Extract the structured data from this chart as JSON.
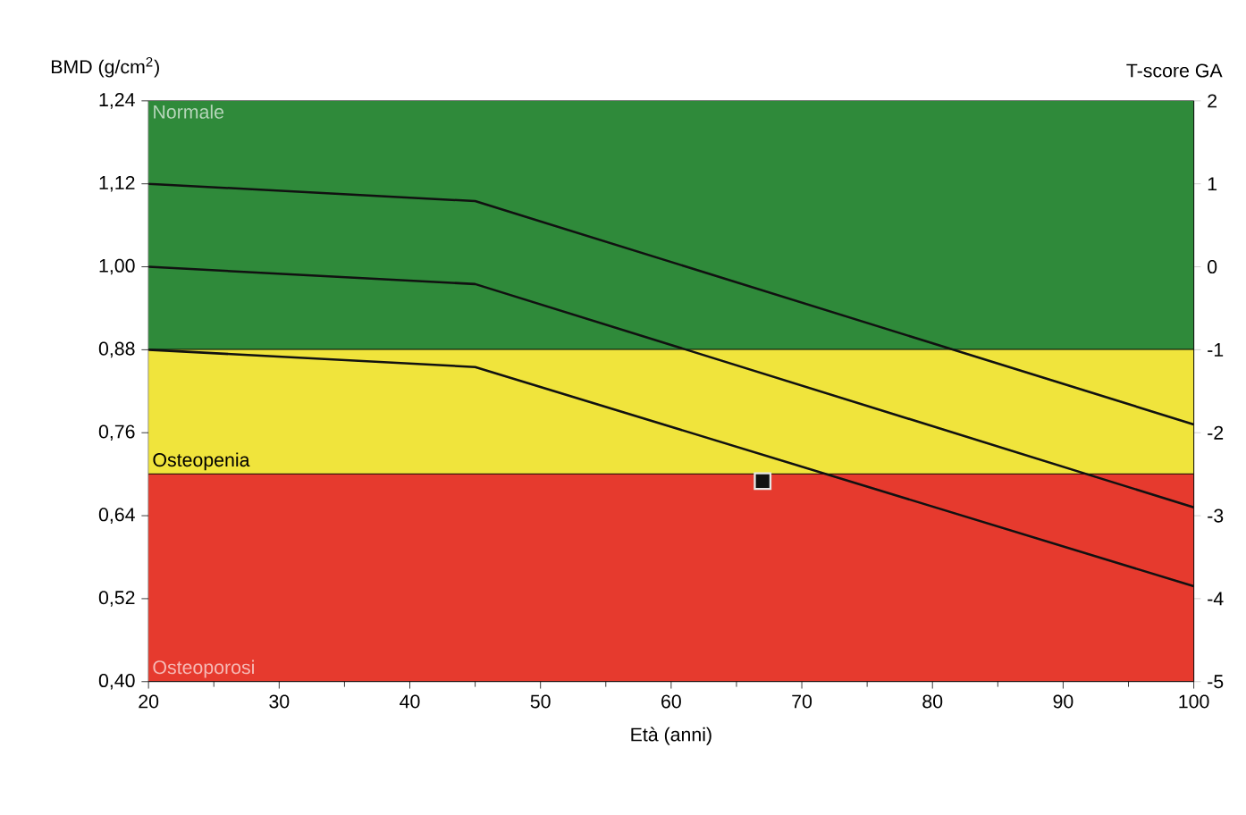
{
  "chart_data": {
    "type": "line",
    "xlabel": "Età (anni)",
    "ylabel": "BMD (g/cm$^{2}$)",
    "y2label": "T-score GA",
    "xlim": [
      20,
      100
    ],
    "xticks": [
      20,
      30,
      40,
      50,
      60,
      70,
      80,
      90,
      100
    ],
    "ylim": [
      0.4,
      1.24
    ],
    "yticks": [
      {
        "value": 0.4,
        "label": "0,40"
      },
      {
        "value": 0.52,
        "label": "0,52"
      },
      {
        "value": 0.64,
        "label": "0,64"
      },
      {
        "value": 0.76,
        "label": "0,76"
      },
      {
        "value": 0.88,
        "label": "0,88"
      },
      {
        "value": 1.0,
        "label": "1,00"
      },
      {
        "value": 1.12,
        "label": "1,12"
      },
      {
        "value": 1.24,
        "label": "1,24"
      }
    ],
    "y2lim": [
      -5,
      2
    ],
    "y2ticks": [
      -5,
      -4,
      -3,
      -2,
      -1,
      0,
      1,
      2
    ],
    "bands": [
      {
        "axis": "y",
        "from": 0.88,
        "to": 1.24,
        "label": "Normale",
        "color": "#2f8a3a"
      },
      {
        "axis": "y",
        "from": 0.7,
        "to": 0.88,
        "label": "Osteopenia",
        "color": "#f0e43c"
      },
      {
        "axis": "y",
        "from": 0.4,
        "to": 0.7,
        "label": "Osteoporosi",
        "color": "#e63a2e"
      }
    ],
    "series": [
      {
        "color": "#111111",
        "x": [
          20,
          45,
          100
        ],
        "values": [
          1.12,
          1.095,
          0.772
        ]
      },
      {
        "color": "#111111",
        "x": [
          20,
          45,
          100
        ],
        "values": [
          1.0,
          0.975,
          0.652
        ]
      },
      {
        "color": "#111111",
        "x": [
          20,
          45,
          100
        ],
        "values": [
          0.88,
          0.855,
          0.538
        ]
      },
      {
        "type": "scatter",
        "color": "#111111",
        "marker": "square",
        "x": [
          67
        ],
        "values": [
          0.69
        ]
      }
    ],
    "marker": "none"
  }
}
